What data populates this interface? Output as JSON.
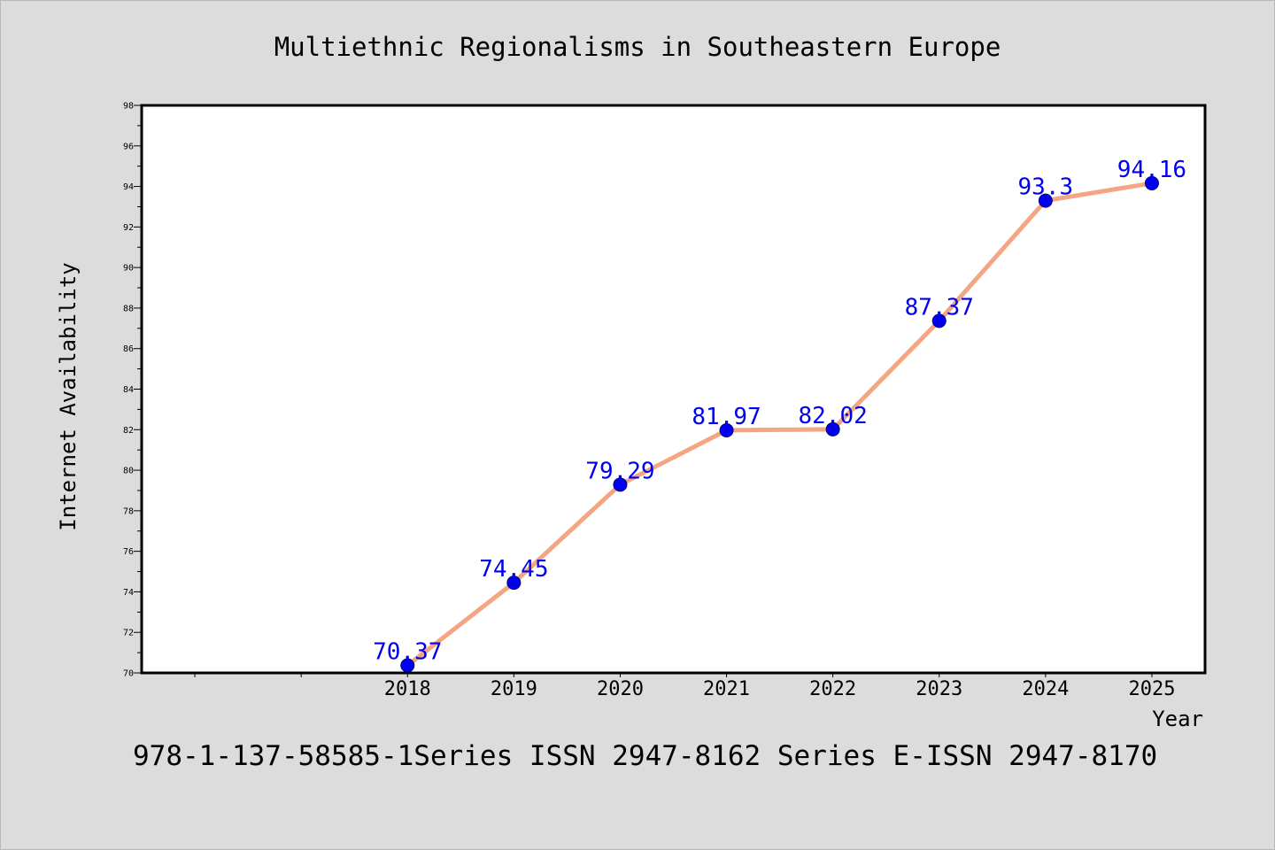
{
  "chart_data": {
    "type": "line",
    "title": "Multiethnic Regionalisms in Southeastern Europe",
    "xlabel": "Year",
    "ylabel": "Internet Availability",
    "footer": "978-1-137-58585-1Series ISSN 2947-8162 Series E-ISSN 2947-8170",
    "categories": [
      "2018",
      "2019",
      "2020",
      "2021",
      "2022",
      "2023",
      "2024",
      "2025"
    ],
    "category_slots": 10,
    "category_offset": 2,
    "values": [
      70.37,
      74.45,
      79.29,
      81.97,
      82.02,
      87.37,
      93.3,
      94.16
    ],
    "value_labels": [
      "70.37",
      "74.45",
      "79.29",
      "81.97",
      "82.02",
      "87.37",
      "93.3",
      "94.16"
    ],
    "ylim": [
      70,
      98
    ],
    "yticks": [
      "70",
      "72",
      "74",
      "76",
      "78",
      "80",
      "82",
      "84",
      "86",
      "88",
      "90",
      "92",
      "94",
      "96",
      "98"
    ],
    "grid": false,
    "colors": {
      "background": "#dcdcdc",
      "plot_bg": "#ffffff",
      "line": "#f4a582",
      "marker": "#0000ee",
      "label": "#0000ee",
      "text": "#000000"
    }
  }
}
